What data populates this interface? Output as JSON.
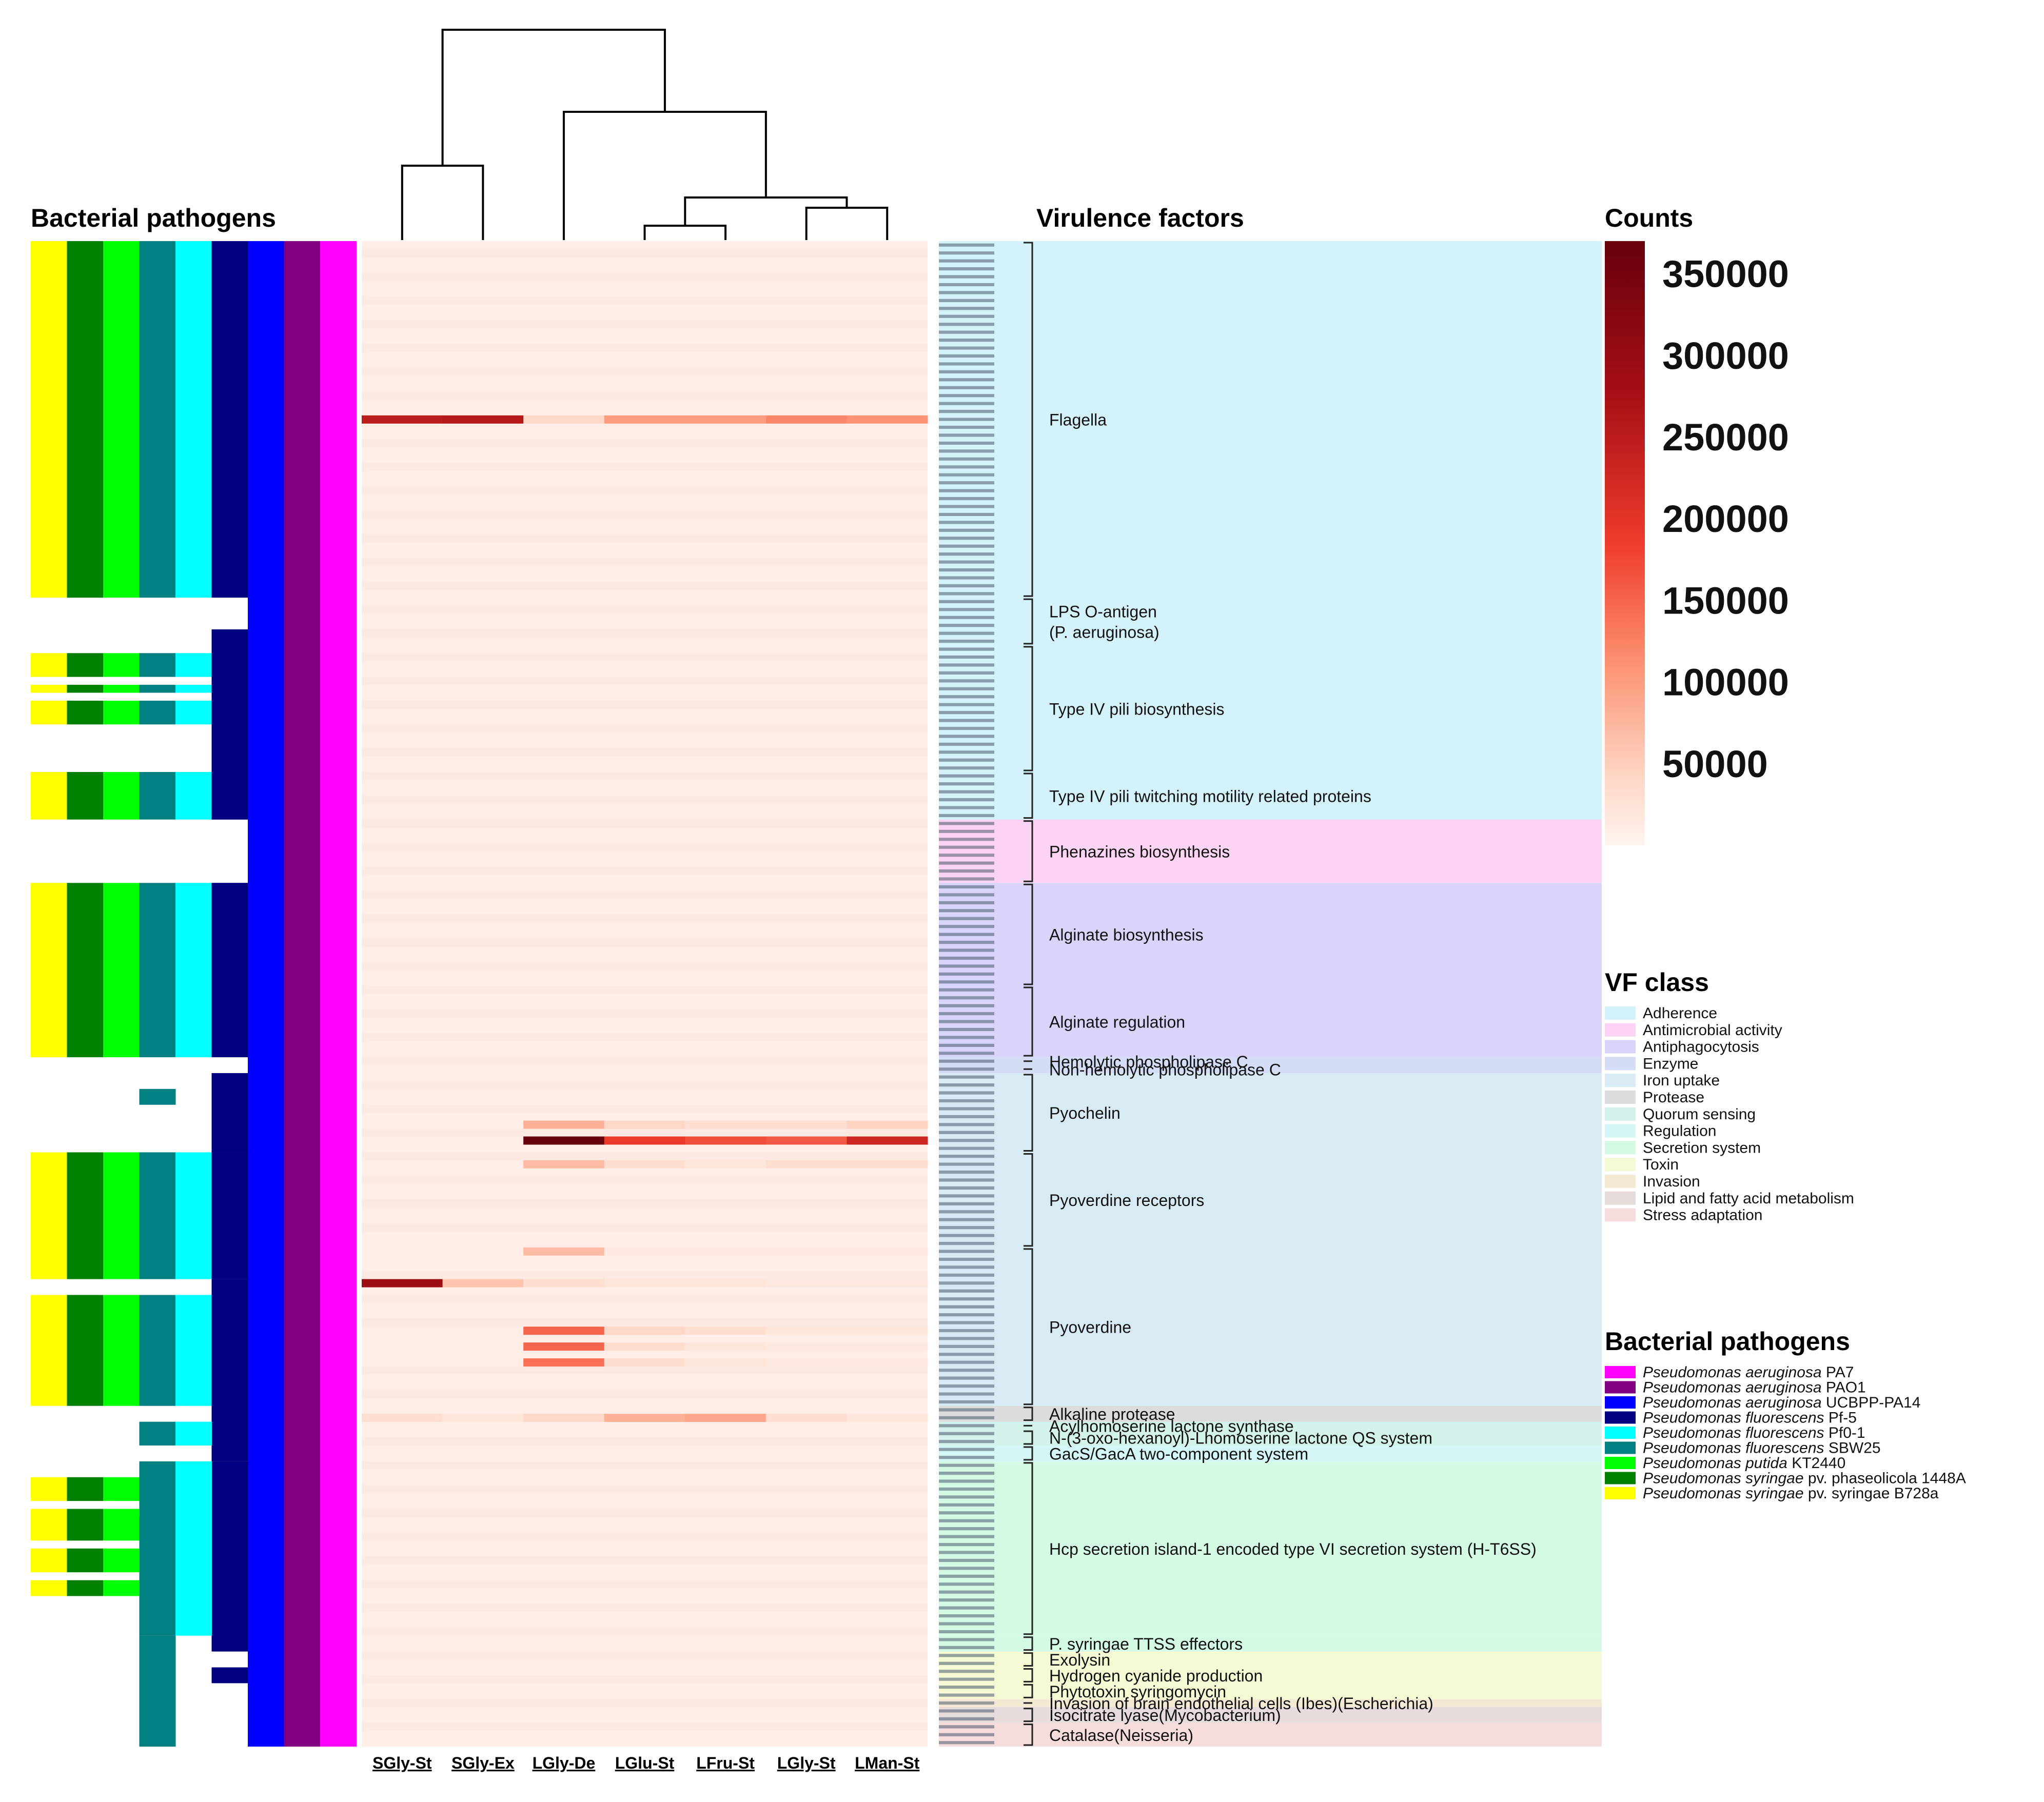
{
  "titles": {
    "left_pathogens": "Bacterial pathogens",
    "virulence_factors": "Virulence factors",
    "counts": "Counts",
    "vf_class": "VF class",
    "legend_pathogens": "Bacterial pathogens"
  },
  "chart_data": {
    "type": "heatmap",
    "columns": [
      "SGly-St",
      "SGly-Ex",
      "LGly-De",
      "LGlu-St",
      "LFru-St",
      "LGly-St",
      "LMan-St"
    ],
    "dendrogram": "((SGly-St,SGly-Ex),(LGly-De,((LGlu-St,LFru-St),(LGly-St,LMan-St))))",
    "colorbar": {
      "min": 0,
      "max": 370000,
      "ticks": [
        "350000",
        "300000",
        "250000",
        "200000",
        "150000",
        "100000",
        "50000"
      ],
      "tick_values": [
        350000,
        300000,
        250000,
        200000,
        150000,
        100000,
        50000
      ]
    },
    "n_genes": 190,
    "baseline_count": 9000,
    "hot_rows": [
      {
        "row": 22,
        "values": [
          250000,
          260000,
          40000,
          100000,
          100000,
          120000,
          110000
        ]
      },
      {
        "row": 113,
        "values": [
          9000,
          9000,
          370000,
          190000,
          170000,
          160000,
          230000
        ]
      },
      {
        "row": 111,
        "values": [
          9000,
          9000,
          80000,
          40000,
          30000,
          30000,
          45000
        ]
      },
      {
        "row": 131,
        "values": [
          290000,
          60000,
          30000,
          20000,
          20000,
          15000,
          15000
        ]
      },
      {
        "row": 137,
        "values": [
          9000,
          9000,
          150000,
          40000,
          30000,
          20000,
          20000
        ]
      },
      {
        "row": 139,
        "values": [
          9000,
          9000,
          150000,
          30000,
          20000,
          15000,
          15000
        ]
      },
      {
        "row": 141,
        "values": [
          9000,
          9000,
          140000,
          30000,
          20000,
          15000,
          15000
        ]
      },
      {
        "row": 148,
        "values": [
          30000,
          20000,
          40000,
          80000,
          90000,
          30000,
          20000
        ]
      },
      {
        "row": 116,
        "values": [
          9000,
          9000,
          70000,
          30000,
          20000,
          30000,
          30000
        ]
      },
      {
        "row": 127,
        "values": [
          9000,
          9000,
          70000,
          15000,
          15000,
          15000,
          15000
        ]
      }
    ],
    "vf_groups": [
      {
        "label": "Flagella",
        "start": 0,
        "end": 45,
        "class": "Adherence"
      },
      {
        "label": "LPS O-antigen\n(P. aeruginosa)",
        "start": 45,
        "end": 51,
        "class": "Adherence"
      },
      {
        "label": "Type IV pili biosynthesis",
        "start": 51,
        "end": 67,
        "class": "Adherence"
      },
      {
        "label": "Type IV pili twitching motility related proteins",
        "start": 67,
        "end": 73,
        "class": "Adherence"
      },
      {
        "label": "Phenazines biosynthesis",
        "start": 73,
        "end": 81,
        "class": "Antimicrobial activity"
      },
      {
        "label": "Alginate biosynthesis",
        "start": 81,
        "end": 94,
        "class": "Antiphagocytosis"
      },
      {
        "label": "Alginate regulation",
        "start": 94,
        "end": 103,
        "class": "Antiphagocytosis"
      },
      {
        "label": "Hemolytic phospholipase C",
        "start": 103,
        "end": 104,
        "class": "Enzyme"
      },
      {
        "label": "Non-hemolytic phospholipase C",
        "start": 104,
        "end": 105,
        "class": "Enzyme"
      },
      {
        "label": "Pyochelin",
        "start": 105,
        "end": 115,
        "class": "Iron uptake"
      },
      {
        "label": "Pyoverdine receptors",
        "start": 115,
        "end": 127,
        "class": "Iron uptake"
      },
      {
        "label": "Pyoverdine",
        "start": 127,
        "end": 147,
        "class": "Iron uptake"
      },
      {
        "label": "Alkaline protease",
        "start": 147,
        "end": 149,
        "class": "Protease"
      },
      {
        "label": "Acylhomoserine lactone synthase",
        "start": 149,
        "end": 150,
        "class": "Quorum sensing"
      },
      {
        "label": "N-(3-oxo-hexanoyl)-Lhomoserine lactone QS system",
        "start": 150,
        "end": 152,
        "class": "Quorum sensing"
      },
      {
        "label": "GacS/GacA two-component system",
        "start": 152,
        "end": 154,
        "class": "Regulation"
      },
      {
        "label": "Hcp secretion island-1 encoded type VI secretion system (H-T6SS)",
        "start": 154,
        "end": 176,
        "class": "Secretion system"
      },
      {
        "label": "P. syringae TTSS effectors",
        "start": 176,
        "end": 178,
        "class": "Secretion system"
      },
      {
        "label": "Exolysin",
        "start": 178,
        "end": 180,
        "class": "Toxin"
      },
      {
        "label": "Hydrogen cyanide production",
        "start": 180,
        "end": 182,
        "class": "Toxin"
      },
      {
        "label": "Phytotoxin syringomycin",
        "start": 182,
        "end": 184,
        "class": "Toxin"
      },
      {
        "label": "Invasion of brain endothelial cells (Ibes)(Escherichia)",
        "start": 184,
        "end": 185,
        "class": "Invasion"
      },
      {
        "label": "Isocitrate lyase(Mycobacterium)",
        "start": 185,
        "end": 187,
        "class": "Lipid and fatty acid metabolism"
      },
      {
        "label": "Catalase(Neisseria)",
        "start": 187,
        "end": 190,
        "class": "Stress adaptation"
      }
    ],
    "vf_class_legend": [
      {
        "label": "Adherence",
        "color": "#d4f2fa"
      },
      {
        "label": "Antimicrobial activity",
        "color": "#fad4f2"
      },
      {
        "label": "Antiphagocytosis",
        "color": "#d8d4fa"
      },
      {
        "label": "Enzyme",
        "color": "#d4dcf6"
      },
      {
        "label": "Iron uptake",
        "color": "#d8eaf4"
      },
      {
        "label": "Protease",
        "color": "#dcdcdc"
      },
      {
        "label": "Quorum sensing",
        "color": "#d4f2ec"
      },
      {
        "label": "Regulation",
        "color": "#d4f6f4"
      },
      {
        "label": "Secretion system",
        "color": "#d4fae6"
      },
      {
        "label": "Toxin",
        "color": "#f6fad4"
      },
      {
        "label": "Invasion",
        "color": "#f4ead4"
      },
      {
        "label": "Lipid and fatty acid metabolism",
        "color": "#e6dcdc"
      },
      {
        "label": "Stress adaptation",
        "color": "#f6dcdc"
      }
    ],
    "pathogen_legend": [
      {
        "genus": "Pseudomonas aeruginosa",
        "strain": " PA7",
        "color": "#ff00ff"
      },
      {
        "genus": "Pseudomonas aeruginosa",
        "strain": " PAO1",
        "color": "#800080"
      },
      {
        "genus": "Pseudomonas aeruginosa",
        "strain": " UCBPP-PA14",
        "color": "#0000ff"
      },
      {
        "genus": "Pseudomonas fluorescens",
        "strain": " Pf-5",
        "color": "#000080"
      },
      {
        "genus": "Pseudomonas fluorescens",
        "strain": " Pf0-1",
        "color": "#00ffff"
      },
      {
        "genus": "Pseudomonas fluorescens",
        "strain": " SBW25",
        "color": "#008080"
      },
      {
        "genus": "Pseudomonas putida",
        "strain": " KT2440",
        "color": "#00ff00"
      },
      {
        "genus": "Pseudomonas syringae",
        "strain": " pv. phaseolicola 1448A",
        "color": "#008000"
      },
      {
        "genus": "Pseudomonas syringae",
        "strain": " pv. syringae B728a",
        "color": "#ffff00"
      }
    ],
    "presence_segments": [
      {
        "cols": [
          0,
          1,
          2,
          3,
          4,
          5
        ],
        "ranges": [
          [
            0,
            45
          ],
          [
            52,
            55
          ],
          [
            56,
            57
          ],
          [
            58,
            61
          ],
          [
            67,
            73
          ],
          [
            81,
            103
          ],
          [
            115,
            131
          ],
          [
            133,
            147
          ],
          [
            156,
            159
          ],
          [
            161,
            164
          ]
        ]
      },
      {
        "cols": [
          5
        ],
        "ranges": [
          [
            49,
            73
          ],
          [
            81,
            103
          ],
          [
            105,
            115
          ],
          [
            115,
            131
          ],
          [
            131,
            154
          ],
          [
            154,
            178
          ],
          [
            180,
            182
          ]
        ]
      },
      {
        "cols": [
          6,
          7,
          8
        ],
        "ranges": [
          [
            0,
            190
          ]
        ]
      },
      {
        "cols": [
          3
        ],
        "ranges": [
          [
            107,
            109
          ],
          [
            176,
            190
          ]
        ]
      },
      {
        "cols": [
          3,
          4
        ],
        "ranges": [
          [
            149,
            152
          ],
          [
            154,
            176
          ]
        ]
      },
      {
        "cols": [
          0,
          1,
          2
        ],
        "ranges": [
          [
            160,
            161
          ],
          [
            165,
            168
          ],
          [
            169,
            171
          ]
        ]
      }
    ]
  }
}
